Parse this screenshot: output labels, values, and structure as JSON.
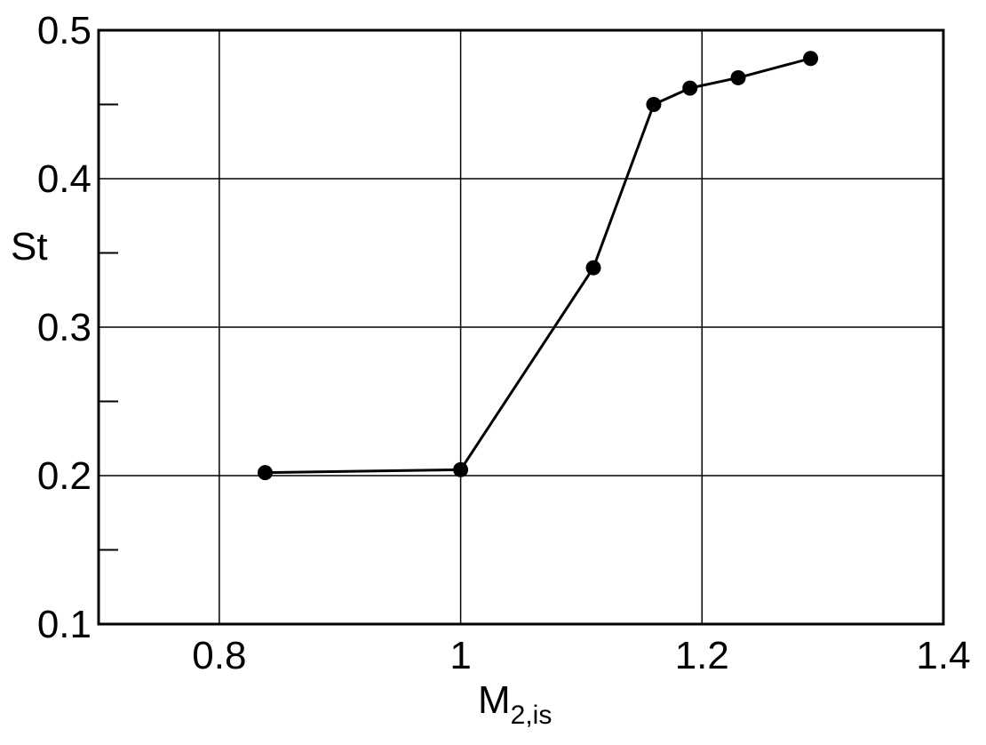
{
  "chart_data": {
    "type": "line",
    "title": "",
    "xlabel": "M",
    "xlabel_subscript": "2,is",
    "ylabel": "St",
    "xlim": [
      0.7,
      1.4
    ],
    "ylim": [
      0.1,
      0.5
    ],
    "x_ticks": [
      0.8,
      1.0,
      1.2,
      1.4
    ],
    "x_tick_labels": [
      "0.8",
      "1",
      "1.2",
      "1.4"
    ],
    "y_ticks": [
      0.1,
      0.2,
      0.3,
      0.4,
      0.5
    ],
    "y_tick_labels": [
      "0.1",
      "0.2",
      "0.3",
      "0.4",
      "0.5"
    ],
    "y_minor_ticks": [
      0.15,
      0.25,
      0.35,
      0.45
    ],
    "grid": true,
    "series": [
      {
        "x": [
          0.838,
          1.0,
          1.11,
          1.16,
          1.19,
          1.23,
          1.29
        ],
        "y": [
          0.202,
          0.204,
          0.34,
          0.45,
          0.461,
          0.468,
          0.481
        ],
        "color": "#000000",
        "marker": "circle"
      }
    ]
  }
}
